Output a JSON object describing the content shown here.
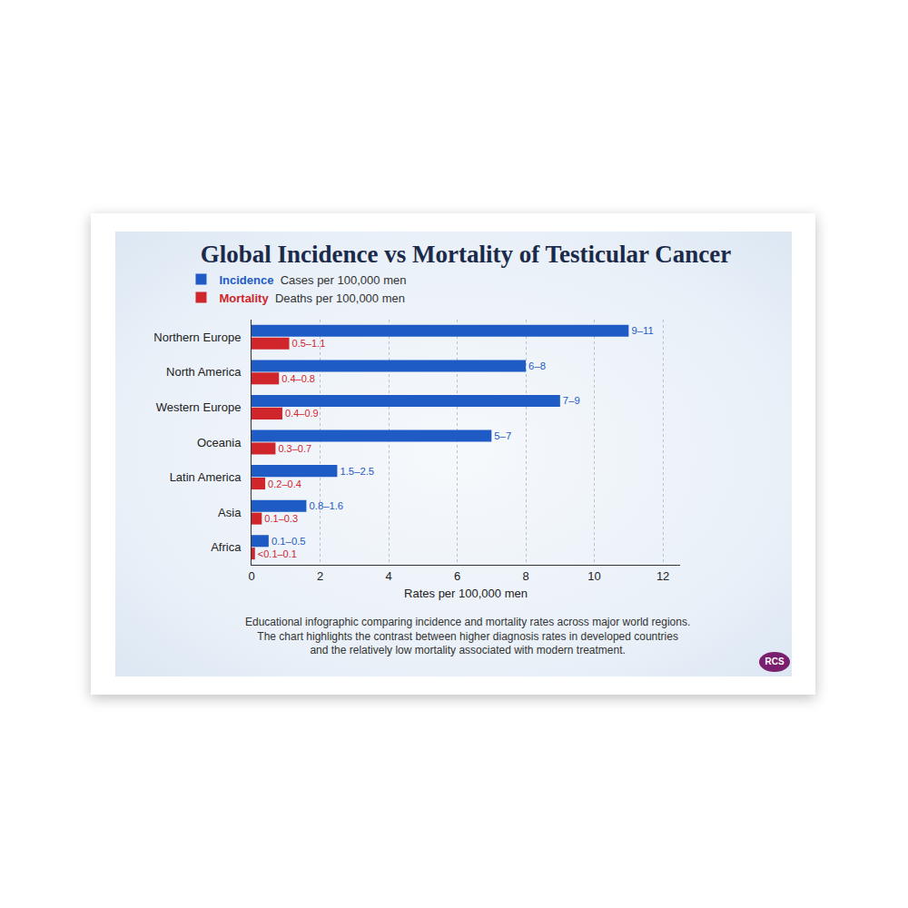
{
  "chart_data": {
    "type": "bar",
    "orientation": "horizontal",
    "title": "Global Incidence vs Mortality of Testicular Cancer",
    "categories": [
      "Northern Europe",
      "North America",
      "Western Europe",
      "Oceania",
      "Latin America",
      "Asia",
      "Africa"
    ],
    "series": [
      {
        "name": "Incidence",
        "description": "Cases per 100,000 men",
        "color": "#1f5bc4",
        "values": [
          11,
          8,
          9,
          7,
          2.5,
          1.6,
          0.5
        ],
        "value_labels": [
          "9–11",
          "6–8",
          "7–9",
          "5–7",
          "1.5–2.5",
          "0.8–1.6",
          "0.1–0.5"
        ]
      },
      {
        "name": "Mortality",
        "description": "Deaths per 100,000 men",
        "color": "#d0252a",
        "values": [
          1.1,
          0.8,
          0.9,
          0.7,
          0.4,
          0.3,
          0.1
        ],
        "value_labels": [
          "0.5–1.1",
          "0.4–0.8",
          "0.4–0.9",
          "0.3–0.7",
          "0.2–0.4",
          "0.1–0.3",
          "<0.1–0.1"
        ]
      }
    ],
    "xlabel": "Rates per 100,000 men",
    "xlim": [
      0,
      12.5
    ],
    "xticks": [
      0,
      2,
      4,
      6,
      8,
      10,
      12
    ],
    "grid": true,
    "legend": "top left",
    "data_labels": true,
    "caption": [
      "Educational infographic comparing incidence and mortality rates across major world regions.",
      "The chart highlights the contrast between higher diagnosis rates in developed countries",
      "and the relatively low mortality associated with modern treatment."
    ],
    "logo": "RCS"
  }
}
